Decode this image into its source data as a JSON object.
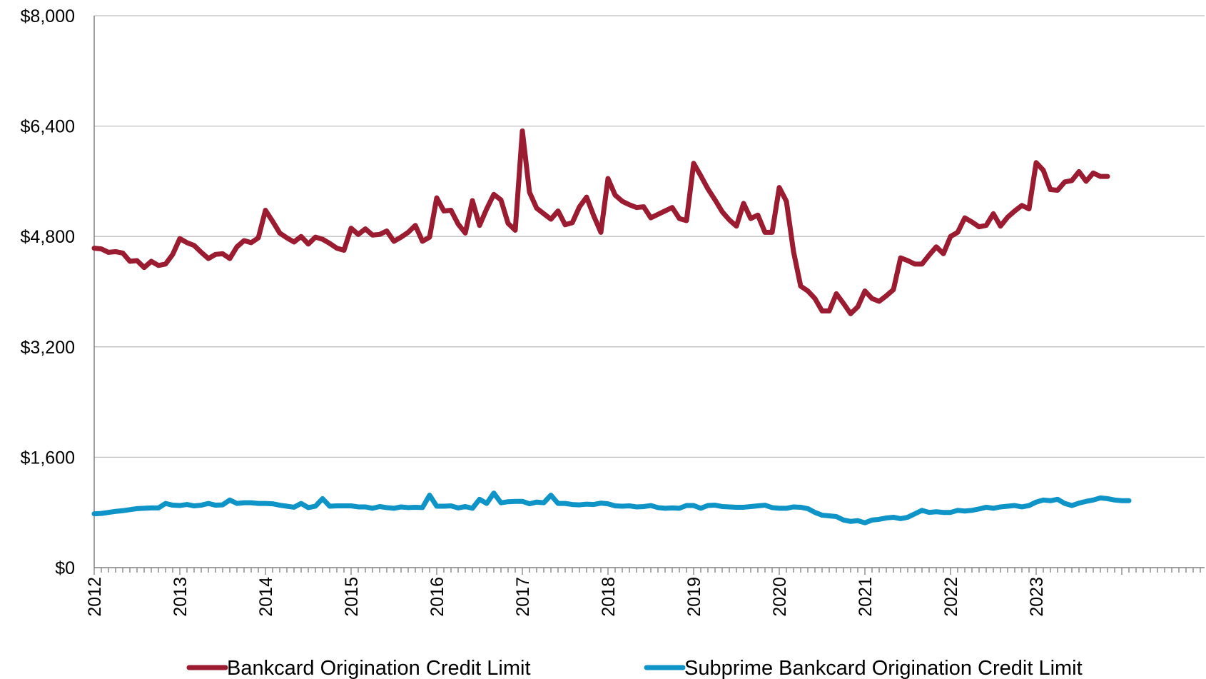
{
  "chart_data": {
    "type": "line",
    "title": "",
    "xlabel": "",
    "ylabel": "",
    "ylim": [
      0,
      8000
    ],
    "y_ticks": [
      0,
      1600,
      3200,
      4800,
      6400,
      8000
    ],
    "y_tick_labels": [
      "$0",
      "$1,600",
      "$3,200",
      "$4,800",
      "$6,400",
      "$8,000"
    ],
    "x_tick_labels": [
      "2012",
      "2013",
      "2014",
      "2015",
      "2016",
      "2017",
      "2018",
      "2019",
      "2020",
      "2021",
      "2022",
      "2023"
    ],
    "x_start_year": 2012,
    "points_per_year": 12,
    "grid": "horizontal",
    "legend_position": "bottom",
    "series": [
      {
        "name": "Bankcard Origination Credit Limit",
        "color": "#9b1b30",
        "values": [
          4630,
          4620,
          4570,
          4580,
          4560,
          4440,
          4450,
          4350,
          4440,
          4380,
          4400,
          4540,
          4770,
          4710,
          4670,
          4570,
          4480,
          4540,
          4550,
          4480,
          4650,
          4740,
          4710,
          4780,
          5180,
          5020,
          4850,
          4780,
          4720,
          4800,
          4690,
          4790,
          4760,
          4700,
          4630,
          4600,
          4920,
          4830,
          4910,
          4820,
          4830,
          4880,
          4730,
          4790,
          4860,
          4960,
          4730,
          4790,
          5360,
          5170,
          5180,
          4980,
          4850,
          5320,
          4960,
          5200,
          5410,
          5330,
          4990,
          4890,
          6330,
          5440,
          5210,
          5130,
          5050,
          5170,
          4970,
          5000,
          5230,
          5370,
          5100,
          4860,
          5640,
          5400,
          5310,
          5260,
          5220,
          5230,
          5070,
          5120,
          5170,
          5220,
          5060,
          5030,
          5860,
          5680,
          5490,
          5330,
          5160,
          5040,
          4950,
          5280,
          5060,
          5110,
          4860,
          4860,
          5510,
          5310,
          4580,
          4080,
          4010,
          3900,
          3720,
          3720,
          3970,
          3830,
          3680,
          3780,
          4010,
          3900,
          3860,
          3940,
          4030,
          4490,
          4450,
          4400,
          4400,
          4530,
          4650,
          4550,
          4800,
          4860,
          5070,
          5010,
          4940,
          4960,
          5130,
          4950,
          5080,
          5170,
          5250,
          5200,
          5870,
          5760,
          5480,
          5470,
          5590,
          5610,
          5740,
          5600,
          5720,
          5670,
          5670
        ]
      },
      {
        "name": "Subprime Bankcard Origination Credit Limit",
        "color": "#0f94c8",
        "values": [
          780,
          785,
          800,
          815,
          825,
          840,
          855,
          860,
          865,
          865,
          930,
          905,
          900,
          915,
          895,
          905,
          930,
          905,
          910,
          980,
          930,
          940,
          940,
          930,
          930,
          925,
          905,
          890,
          875,
          930,
          870,
          890,
          1000,
          890,
          895,
          895,
          895,
          880,
          880,
          860,
          885,
          870,
          860,
          880,
          870,
          875,
          870,
          1050,
          890,
          890,
          895,
          865,
          885,
          860,
          990,
          930,
          1080,
          940,
          955,
          960,
          960,
          925,
          950,
          940,
          1050,
          930,
          930,
          915,
          910,
          920,
          915,
          935,
          925,
          895,
          890,
          895,
          880,
          885,
          900,
          870,
          860,
          865,
          860,
          900,
          900,
          860,
          900,
          905,
          885,
          880,
          875,
          875,
          885,
          895,
          905,
          870,
          860,
          860,
          880,
          875,
          855,
          800,
          760,
          750,
          740,
          690,
          670,
          680,
          650,
          690,
          700,
          720,
          730,
          710,
          730,
          780,
          830,
          800,
          810,
          800,
          800,
          830,
          820,
          830,
          850,
          875,
          860,
          880,
          890,
          900,
          880,
          900,
          950,
          980,
          970,
          990,
          930,
          900,
          935,
          960,
          980,
          1010,
          1000,
          980,
          970,
          970
        ]
      }
    ]
  }
}
